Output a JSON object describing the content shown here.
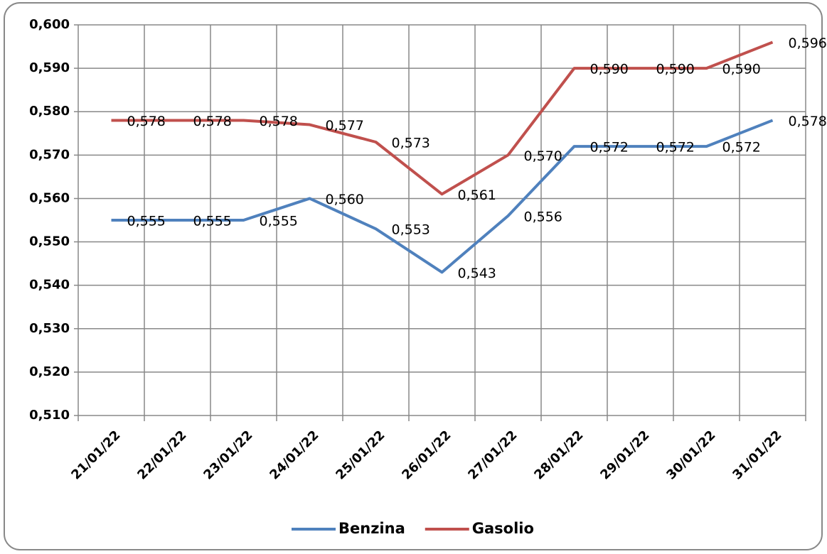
{
  "chart_data": {
    "type": "line",
    "categories": [
      "21/01/22",
      "22/01/22",
      "23/01/22",
      "24/01/22",
      "25/01/22",
      "26/01/22",
      "27/01/22",
      "28/01/22",
      "29/01/22",
      "30/01/22",
      "31/01/22"
    ],
    "series": [
      {
        "name": "Benzina",
        "color": "#4f81bd",
        "values": [
          0.555,
          0.555,
          0.555,
          0.56,
          0.553,
          0.543,
          0.556,
          0.572,
          0.572,
          0.572,
          0.578
        ],
        "value_labels": [
          "0,555",
          "0,555",
          "0,555",
          "0,560",
          "0,553",
          "0,543",
          "0,556",
          "0,572",
          "0,572",
          "0,572",
          "0,578"
        ]
      },
      {
        "name": "Gasolio",
        "color": "#c0504d",
        "values": [
          0.578,
          0.578,
          0.578,
          0.577,
          0.573,
          0.561,
          0.57,
          0.59,
          0.59,
          0.59,
          0.596
        ],
        "value_labels": [
          "0,578",
          "0,578",
          "0,578",
          "0,577",
          "0,573",
          "0,561",
          "0,570",
          "0,590",
          "0,590",
          "0,590",
          "0,596"
        ]
      }
    ],
    "ylim": [
      0.51,
      0.6
    ],
    "yticks": [
      {
        "value": 0.51,
        "label": "0,510"
      },
      {
        "value": 0.52,
        "label": "0,520"
      },
      {
        "value": 0.53,
        "label": "0,530"
      },
      {
        "value": 0.54,
        "label": "0,540"
      },
      {
        "value": 0.55,
        "label": "0,550"
      },
      {
        "value": 0.56,
        "label": "0,560"
      },
      {
        "value": 0.57,
        "label": "0,570"
      },
      {
        "value": 0.58,
        "label": "0,580"
      },
      {
        "value": 0.59,
        "label": "0,590"
      },
      {
        "value": 0.6,
        "label": "0,600"
      }
    ],
    "grid": true,
    "legend": "bottom"
  }
}
